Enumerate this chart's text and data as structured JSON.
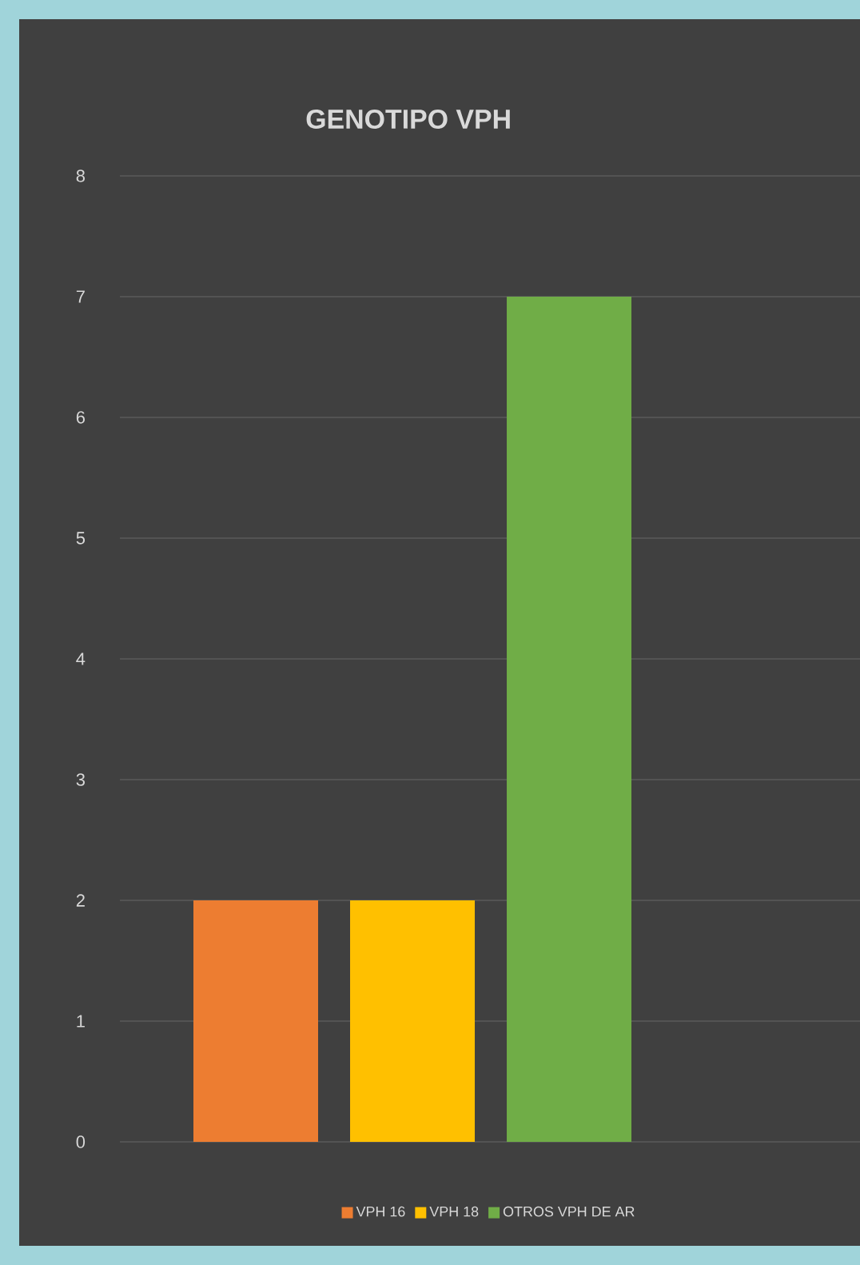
{
  "chart_data": {
    "type": "bar",
    "title": "GENOTIPO VPH",
    "categories": [
      null
    ],
    "series": [
      {
        "name": "VPH 16",
        "color": "#ed7d31",
        "values": [
          2
        ]
      },
      {
        "name": "VPH 18",
        "color": "#ffc000",
        "values": [
          2
        ]
      },
      {
        "name": "OTROS VPH DE AR",
        "color": "#70ad47",
        "values": [
          7
        ]
      }
    ],
    "ylim": [
      0,
      8
    ],
    "yticks": [
      0,
      1,
      2,
      3,
      4,
      5,
      6,
      7,
      8
    ],
    "grid": "y",
    "legend": "bottom"
  }
}
